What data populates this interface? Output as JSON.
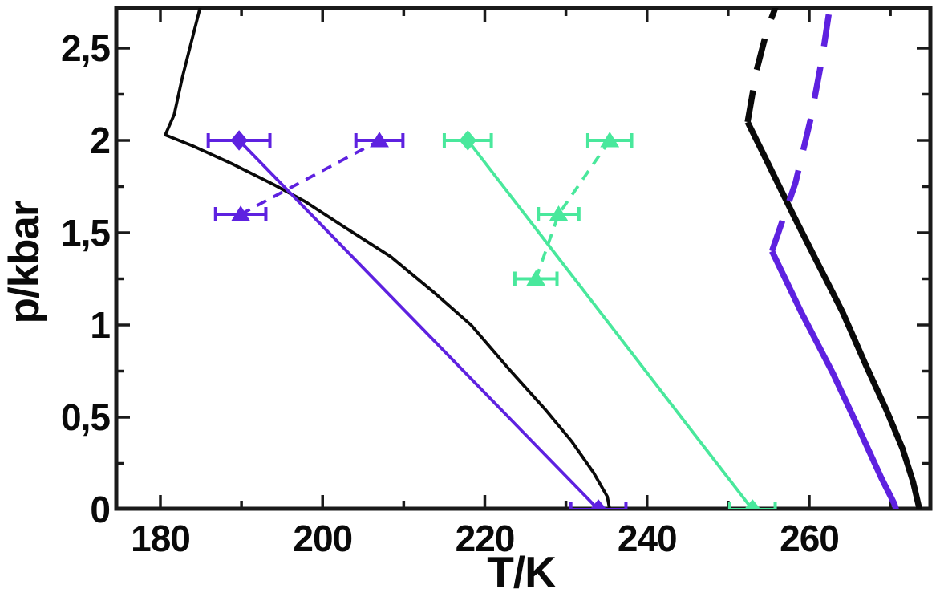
{
  "figure": {
    "background": "#ffffff",
    "frame_color": "#1a1a1a"
  },
  "chart_data": {
    "type": "line",
    "title": "",
    "xlabel": "T/K",
    "ylabel": "p/kbar",
    "xlim": [
      174.4,
      275.2
    ],
    "ylim": [
      0,
      2.72
    ],
    "grid": false,
    "legend": "none",
    "decimal_separator": ",",
    "x_ticks": {
      "major": [
        180,
        200,
        220,
        240,
        260
      ],
      "minor": [
        190,
        210,
        230,
        250,
        270
      ],
      "labels": [
        "180",
        "200",
        "220",
        "240",
        "260"
      ]
    },
    "y_ticks": {
      "major": [
        0,
        0.5,
        1,
        1.5,
        2,
        2.5
      ],
      "minor": [
        0.25,
        0.75,
        1.25,
        1.75,
        2.25
      ],
      "labels": [
        "0",
        "0,5",
        "1",
        "1,5",
        "2",
        "2,5"
      ]
    },
    "colors": {
      "black": "#0a0a0a",
      "violet": "#5e21e0",
      "green": "#49e89c"
    },
    "series": [
      {
        "id": "thin-black-solid-curve",
        "color": "#0a0a0a",
        "line_width": "thin",
        "line_style": "solid",
        "marker": "none",
        "points": [
          [
            184.9,
            2.72
          ],
          [
            183.8,
            2.53
          ],
          [
            182.7,
            2.34
          ],
          [
            181.7,
            2.14
          ],
          [
            180.6,
            2.03
          ],
          [
            184.0,
            1.97
          ],
          [
            189.0,
            1.87
          ],
          [
            194.0,
            1.76
          ],
          [
            197.8,
            1.67
          ],
          [
            202.7,
            1.53
          ],
          [
            208.4,
            1.37
          ],
          [
            213.9,
            1.17
          ],
          [
            218.3,
            1.0
          ],
          [
            222.8,
            0.77
          ],
          [
            227.5,
            0.54
          ],
          [
            230.7,
            0.37
          ],
          [
            233.4,
            0.2
          ],
          [
            235.1,
            0.07
          ],
          [
            235.4,
            0.0
          ]
        ]
      },
      {
        "id": "violet-solid-diamonds",
        "color": "#5e21e0",
        "line_width": "thin",
        "line_style": "solid",
        "marker": "diamond",
        "points": [
          [
            189.7,
            2.0
          ],
          [
            234.0,
            0.0
          ]
        ],
        "xerr": [
          3.8,
          3.4
        ]
      },
      {
        "id": "violet-dashed-triangles",
        "color": "#5e21e0",
        "line_width": "thin",
        "line_style": "dashed",
        "marker": "triangle",
        "points": [
          [
            189.9,
            1.6
          ],
          [
            207.0,
            2.0
          ]
        ],
        "xerr": [
          3.1,
          2.9
        ]
      },
      {
        "id": "green-solid-diamonds",
        "color": "#49e89c",
        "line_width": "thin",
        "line_style": "solid",
        "marker": "diamond",
        "points": [
          [
            217.9,
            2.0
          ],
          [
            253.0,
            0.0
          ]
        ],
        "xerr": [
          2.9,
          2.8
        ]
      },
      {
        "id": "green-dashed-triangles",
        "color": "#49e89c",
        "line_width": "thin",
        "line_style": "dashed",
        "marker": "triangle",
        "points": [
          [
            226.3,
            1.25
          ],
          [
            229.1,
            1.6
          ],
          [
            235.4,
            2.0
          ]
        ],
        "xerr": [
          2.6,
          2.5,
          2.7
        ]
      },
      {
        "id": "thick-black-solid-curve",
        "color": "#0a0a0a",
        "line_width": "thick",
        "line_style": "solid",
        "marker": "none",
        "points": [
          [
            252.4,
            2.1
          ],
          [
            255.2,
            1.85
          ],
          [
            258.1,
            1.59
          ],
          [
            261.1,
            1.33
          ],
          [
            264.1,
            1.07
          ],
          [
            267.0,
            0.78
          ],
          [
            269.5,
            0.54
          ],
          [
            271.5,
            0.33
          ],
          [
            272.8,
            0.15
          ],
          [
            273.6,
            0.0
          ]
        ]
      },
      {
        "id": "thick-black-dashed-curve",
        "color": "#0a0a0a",
        "line_width": "thick",
        "line_style": "dashed",
        "marker": "none",
        "points": [
          [
            252.4,
            2.1
          ],
          [
            253.5,
            2.38
          ],
          [
            254.8,
            2.6
          ],
          [
            256.0,
            2.74
          ]
        ]
      },
      {
        "id": "thick-violet-solid-curve",
        "color": "#5e21e0",
        "line_width": "thick",
        "line_style": "solid",
        "marker": "none",
        "points": [
          [
            255.4,
            1.4
          ],
          [
            259.0,
            1.07
          ],
          [
            262.9,
            0.74
          ],
          [
            266.3,
            0.42
          ],
          [
            268.9,
            0.17
          ],
          [
            270.5,
            0.03
          ],
          [
            270.7,
            0.0
          ]
        ]
      },
      {
        "id": "thick-violet-dashed-curve",
        "color": "#5e21e0",
        "line_width": "thick",
        "line_style": "dashed",
        "marker": "none",
        "points": [
          [
            255.4,
            1.4
          ],
          [
            258.3,
            1.77
          ],
          [
            260.2,
            2.12
          ],
          [
            261.6,
            2.45
          ],
          [
            262.6,
            2.74
          ]
        ]
      }
    ]
  }
}
